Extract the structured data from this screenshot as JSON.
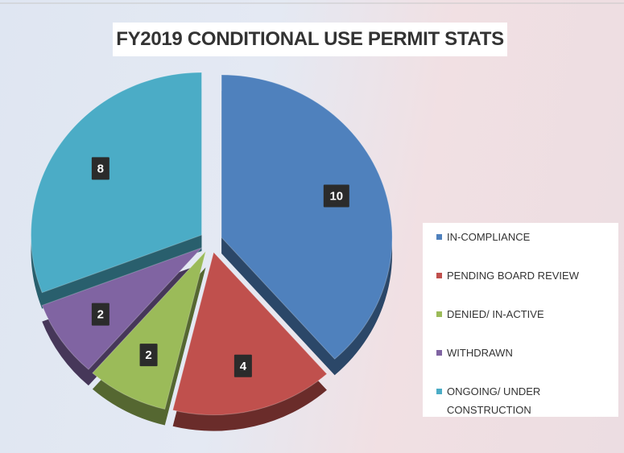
{
  "chart_data": {
    "type": "pie",
    "title": "FY2019 CONDITIONAL USE PERMIT STATS",
    "categories": [
      "IN-COMPLIANCE",
      "PENDING BOARD REVIEW",
      "DENIED/  IN-ACTIVE",
      "WITHDRAWN",
      "ONGOING/ UNDER CONSTRUCTION"
    ],
    "values": [
      10,
      4,
      2,
      2,
      8
    ],
    "colors": [
      "#4f81bd",
      "#c0504d",
      "#9bbb59",
      "#8064a2",
      "#4bacc6"
    ],
    "legend": "right"
  }
}
